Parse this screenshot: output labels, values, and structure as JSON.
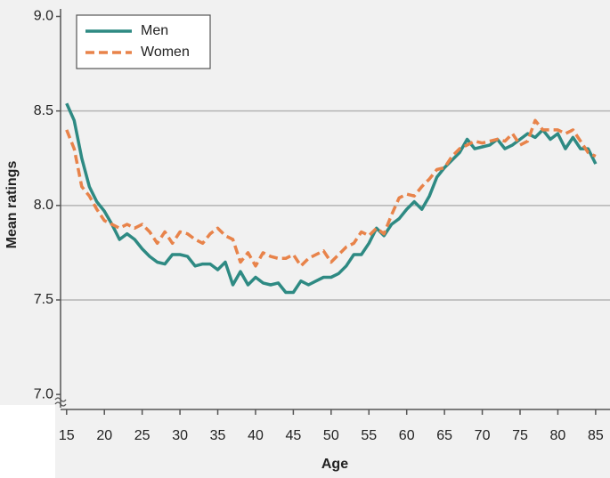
{
  "chart_data": {
    "type": "line",
    "x_label": "Age",
    "y_label": "Mean ratings",
    "x": [
      15,
      16,
      17,
      18,
      19,
      20,
      21,
      22,
      23,
      24,
      25,
      26,
      27,
      28,
      29,
      30,
      31,
      32,
      33,
      34,
      35,
      36,
      37,
      38,
      39,
      40,
      41,
      42,
      43,
      44,
      45,
      46,
      47,
      48,
      49,
      50,
      51,
      52,
      53,
      54,
      55,
      56,
      57,
      58,
      59,
      60,
      61,
      62,
      63,
      64,
      65,
      66,
      67,
      68,
      69,
      70,
      71,
      72,
      73,
      74,
      75,
      76,
      77,
      78,
      79,
      80,
      81,
      82,
      83,
      84,
      85
    ],
    "series": [
      {
        "name": "Men",
        "color": "#2e8a83",
        "dashed": false,
        "values": [
          8.54,
          8.45,
          8.25,
          8.1,
          8.02,
          7.97,
          7.9,
          7.82,
          7.85,
          7.82,
          7.77,
          7.73,
          7.7,
          7.69,
          7.74,
          7.74,
          7.73,
          7.68,
          7.69,
          7.69,
          7.66,
          7.7,
          7.58,
          7.65,
          7.58,
          7.62,
          7.59,
          7.58,
          7.59,
          7.54,
          7.54,
          7.6,
          7.58,
          7.6,
          7.62,
          7.62,
          7.64,
          7.68,
          7.74,
          7.74,
          7.8,
          7.88,
          7.84,
          7.9,
          7.93,
          7.98,
          8.02,
          7.98,
          8.05,
          8.15,
          8.2,
          8.24,
          8.28,
          8.35,
          8.3,
          8.31,
          8.32,
          8.35,
          8.3,
          8.32,
          8.35,
          8.38,
          8.36,
          8.4,
          8.35,
          8.38,
          8.3,
          8.36,
          8.3,
          8.3,
          8.22
        ]
      },
      {
        "name": "Women",
        "color": "#e8834a",
        "dashed": true,
        "values": [
          8.4,
          8.3,
          8.1,
          8.05,
          7.98,
          7.92,
          7.9,
          7.88,
          7.9,
          7.88,
          7.9,
          7.86,
          7.8,
          7.86,
          7.8,
          7.86,
          7.85,
          7.82,
          7.8,
          7.85,
          7.88,
          7.84,
          7.82,
          7.7,
          7.75,
          7.68,
          7.75,
          7.73,
          7.72,
          7.72,
          7.74,
          7.68,
          7.72,
          7.74,
          7.76,
          7.7,
          7.74,
          7.78,
          7.8,
          7.86,
          7.84,
          7.88,
          7.85,
          7.95,
          8.04,
          8.06,
          8.05,
          8.1,
          8.14,
          8.19,
          8.2,
          8.26,
          8.3,
          8.32,
          8.34,
          8.33,
          8.34,
          8.35,
          8.34,
          8.38,
          8.32,
          8.34,
          8.45,
          8.4,
          8.4,
          8.4,
          8.38,
          8.4,
          8.34,
          8.28,
          8.26
        ]
      }
    ],
    "xlim": [
      14.2,
      86.9
    ],
    "xticks": [
      15,
      20,
      25,
      30,
      35,
      40,
      45,
      50,
      55,
      60,
      65,
      70,
      75,
      80,
      85
    ],
    "ylim": [
      6.93,
      9.04
    ],
    "yticks": [
      {
        "value": 7,
        "label": "7.0"
      },
      {
        "value": 7.5,
        "label": "7.5"
      },
      {
        "value": 8,
        "label": "8.0"
      },
      {
        "value": 8.5,
        "label": "8.5"
      },
      {
        "value": 9,
        "label": "9.0"
      }
    ],
    "grid": true,
    "legend": "upper-left"
  }
}
